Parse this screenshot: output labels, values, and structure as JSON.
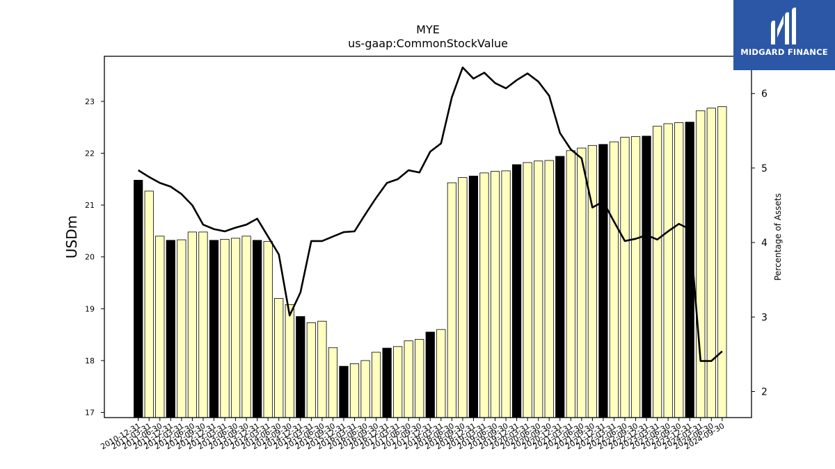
{
  "brand": {
    "name": "MIDGARD FINANCE",
    "logo_icon": "midgard-m-icon",
    "color": "#2b57a6"
  },
  "chart_data": {
    "type": "bar",
    "title": "MYE",
    "subtitle": "us-gaap:CommonStockValue",
    "ylabel": "USDm",
    "y2label": "Percentage of Assets",
    "ylim": [
      16.9,
      23.87
    ],
    "y2lim": [
      1.65,
      6.5
    ],
    "yticks": [
      17,
      18,
      19,
      20,
      21,
      22,
      23
    ],
    "y2ticks": [
      2,
      3,
      4,
      5,
      6
    ],
    "colors": {
      "annual_bar": "#000000",
      "quarter_bar": "#ffffbf",
      "line": "#000000"
    },
    "categories": [
      "2010-12-31",
      "2011-03-31",
      "2011-06-30",
      "2011-12-31",
      "2012-03-31",
      "2012-06-30",
      "2012-09-30",
      "2012-12-31",
      "2013-03-31",
      "2013-06-30",
      "2013-09-30",
      "2013-12-31",
      "2014-03-31",
      "2014-06-30",
      "2014-09-30",
      "2014-12-31",
      "2015-03-31",
      "2015-06-30",
      "2015-09-30",
      "2015-12-31",
      "2016-03-31",
      "2016-06-30",
      "2016-09-30",
      "2016-12-31",
      "2017-03-31",
      "2017-06-30",
      "2017-09-30",
      "2017-12-31",
      "2018-03-31",
      "2018-06-30",
      "2018-09-30",
      "2018-12-31",
      "2019-03-31",
      "2019-06-30",
      "2019-09-30",
      "2019-12-31",
      "2020-03-31",
      "2020-06-30",
      "2020-09-30",
      "2020-12-31",
      "2021-03-31",
      "2021-06-30",
      "2021-09-30",
      "2021-12-31",
      "2022-03-31",
      "2022-06-30",
      "2022-09-30",
      "2022-12-31",
      "2023-03-31",
      "2023-06-30",
      "2023-09-30",
      "2023-12-31",
      "2024-03-31",
      "2024-06-30",
      "2024-09-30"
    ],
    "annual": [
      true,
      false,
      false,
      true,
      false,
      false,
      false,
      true,
      false,
      false,
      false,
      true,
      false,
      false,
      false,
      true,
      false,
      false,
      false,
      true,
      false,
      false,
      false,
      true,
      false,
      false,
      false,
      true,
      false,
      false,
      false,
      true,
      false,
      false,
      false,
      true,
      false,
      false,
      false,
      true,
      false,
      false,
      false,
      true,
      false,
      false,
      false,
      true,
      false,
      false,
      false,
      true,
      false,
      false,
      false
    ],
    "series": [
      {
        "type": "bar",
        "axis": "left",
        "values": [
          21.48,
          21.27,
          20.4,
          20.32,
          20.33,
          20.48,
          20.48,
          20.32,
          20.34,
          20.36,
          20.4,
          20.32,
          20.3,
          19.2,
          19.08,
          18.85,
          18.73,
          18.76,
          18.25,
          17.89,
          17.94,
          18.0,
          18.16,
          18.24,
          18.27,
          18.38,
          18.41,
          18.55,
          18.6,
          21.43,
          21.53,
          21.56,
          21.62,
          21.65,
          21.66,
          21.78,
          21.82,
          21.85,
          21.86,
          21.94,
          22.05,
          22.1,
          22.15,
          22.17,
          22.22,
          22.31,
          22.32,
          22.33,
          22.52,
          22.57,
          22.59,
          22.6,
          22.82,
          22.87,
          22.9
        ]
      },
      {
        "type": "line",
        "axis": "right",
        "values": [
          4.97,
          4.88,
          4.8,
          4.75,
          4.65,
          4.5,
          4.24,
          4.18,
          4.15,
          4.2,
          4.24,
          4.32,
          4.08,
          3.84,
          3.02,
          3.33,
          4.02,
          4.02,
          4.08,
          4.14,
          4.15,
          4.38,
          4.6,
          4.8,
          4.85,
          4.97,
          4.94,
          5.22,
          5.33,
          5.95,
          6.35,
          6.2,
          6.28,
          6.14,
          6.07,
          6.18,
          6.27,
          6.16,
          5.97,
          5.47,
          5.25,
          5.13,
          4.47,
          4.55,
          4.28,
          4.02,
          4.05,
          4.1,
          4.04,
          4.15,
          4.25,
          4.18,
          2.41,
          2.41,
          2.54
        ]
      }
    ]
  }
}
